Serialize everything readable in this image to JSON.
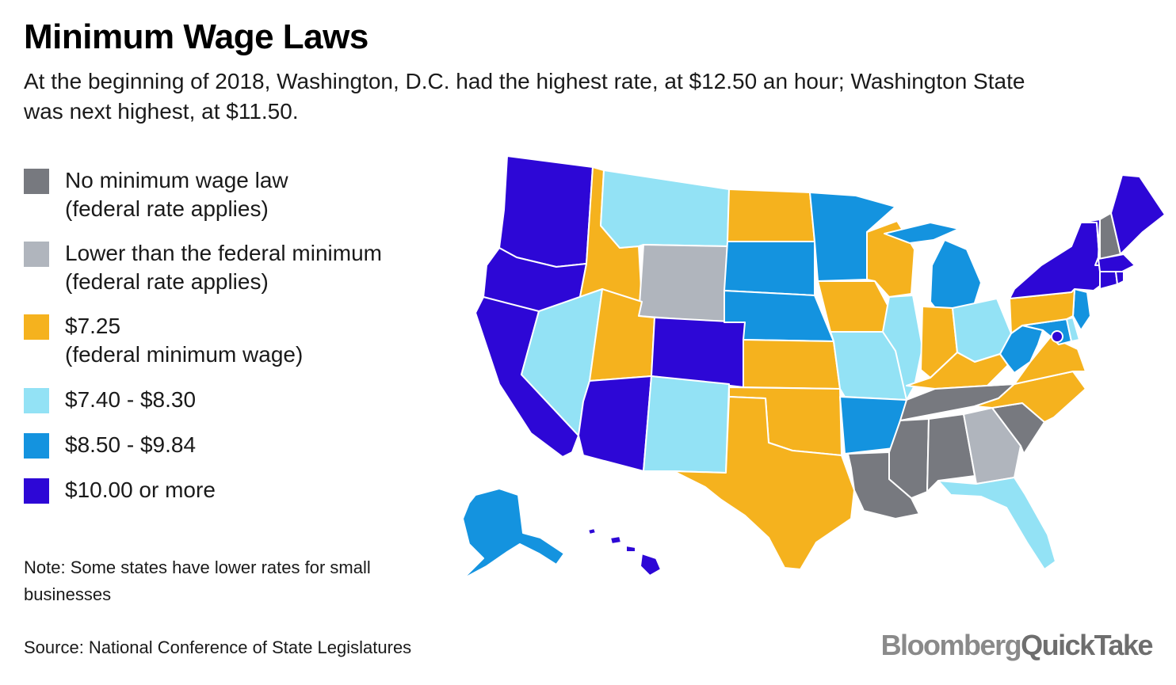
{
  "title": "Minimum Wage Laws",
  "subtitle": "At the beginning of 2018, Washington, D.C. had the highest rate, at $12.50 an hour; Washington State was next highest, at $11.50.",
  "legend": [
    {
      "key": "none",
      "color": "#77797f",
      "line1": "No minimum wage law",
      "line2": "(federal rate applies)"
    },
    {
      "key": "lower",
      "color": "#b0b5bd",
      "line1": "Lower than the federal minimum",
      "line2": "(federal rate applies)"
    },
    {
      "key": "fed",
      "color": "#f5b21e",
      "line1": "$7.25",
      "line2": "(federal minimum wage)"
    },
    {
      "key": "low",
      "color": "#93e2f5",
      "line1": "$7.40 - $8.30",
      "line2": ""
    },
    {
      "key": "mid",
      "color": "#1493df",
      "line1": "$8.50 - $9.84",
      "line2": ""
    },
    {
      "key": "high",
      "color": "#2d07d6",
      "line1": "$10.00 or more",
      "line2": ""
    }
  ],
  "note": "Note: Some states have lower rates for small businesses",
  "source": "Source: National Conference of State Legislatures",
  "brand": {
    "part1": "Bloomberg",
    "part2": "QuickTake"
  },
  "states": {
    "WA": "high",
    "OR": "high",
    "CA": "high",
    "ID": "fed",
    "NV": "low",
    "UT": "fed",
    "AZ": "high",
    "MT": "low",
    "WY": "lower",
    "CO": "high",
    "NM": "low",
    "ND": "fed",
    "SD": "mid",
    "NE": "mid",
    "KS": "fed",
    "OK": "fed",
    "TX": "fed",
    "MN": "mid",
    "IA": "fed",
    "MO": "low",
    "AR": "mid",
    "LA": "none",
    "WI": "fed",
    "IL": "low",
    "MI": "mid",
    "IN": "fed",
    "OH": "low",
    "KY": "fed",
    "TN": "none",
    "MS": "none",
    "AL": "none",
    "GA": "lower",
    "FL": "low",
    "SC": "none",
    "NC": "fed",
    "VA": "fed",
    "WV": "mid",
    "MD": "mid",
    "DE": "low",
    "NJ": "mid",
    "PA": "fed",
    "NY": "high",
    "VT": "high",
    "NH": "none",
    "ME": "high",
    "MA": "high",
    "CT": "high",
    "RI": "high",
    "DC": "high",
    "AK": "mid",
    "HI": "high"
  }
}
